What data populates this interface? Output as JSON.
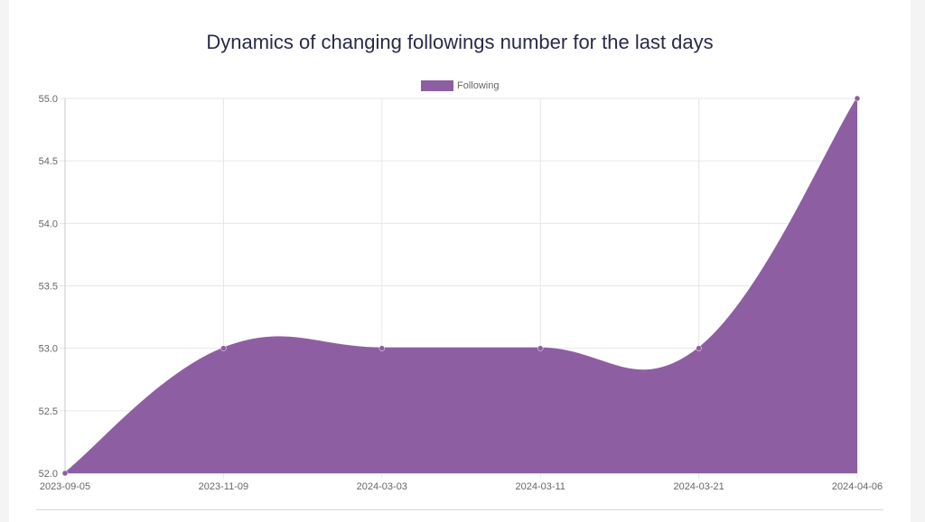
{
  "chart_data": {
    "type": "area",
    "title": "Dynamics of changing followings number for the last days",
    "x": [
      "2023-09-05",
      "2023-11-09",
      "2024-03-03",
      "2024-03-11",
      "2024-03-21",
      "2024-04-06"
    ],
    "series": [
      {
        "name": "Following",
        "values": [
          52,
          53,
          53,
          53,
          53,
          55
        ]
      }
    ],
    "yticks": [
      "52.0",
      "52.5",
      "53.0",
      "53.5",
      "54.0",
      "54.5",
      "55.0"
    ],
    "ylim": [
      52,
      55
    ],
    "grid": true,
    "legend": "top-center",
    "color": "#8e5ea2"
  }
}
